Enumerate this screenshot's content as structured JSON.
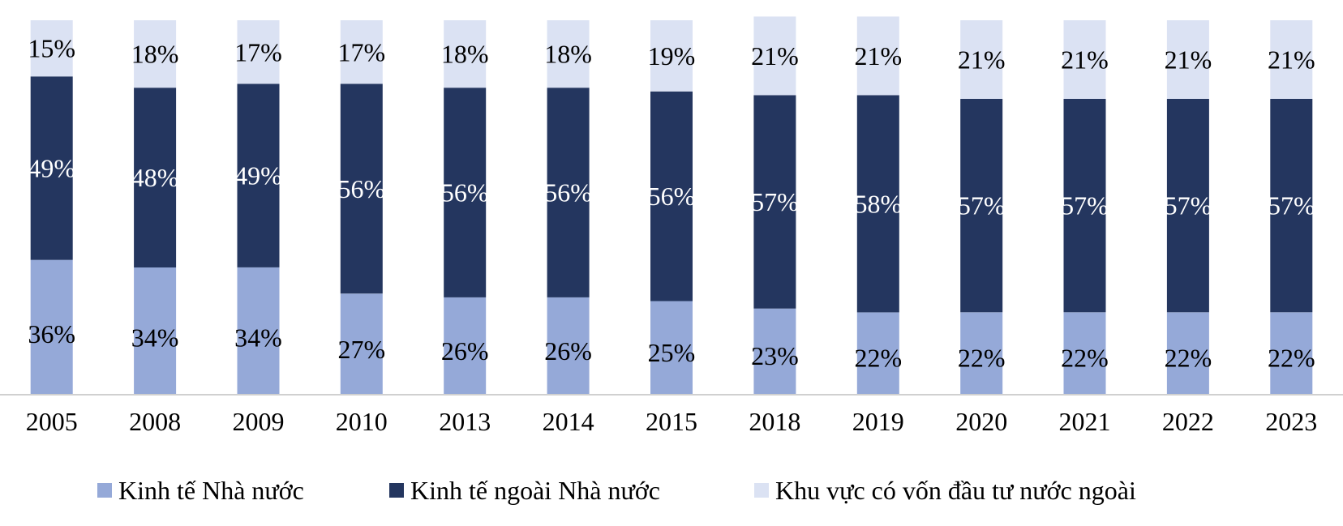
{
  "chart_data": {
    "type": "bar",
    "stacked": true,
    "normalized": true,
    "categories": [
      "2005",
      "2008",
      "2009",
      "2010",
      "2013",
      "2014",
      "2015",
      "2018",
      "2019",
      "2020",
      "2021",
      "2022",
      "2023"
    ],
    "series": [
      {
        "name": "Kinh tế Nhà nước",
        "color": "#95a9d8",
        "values": [
          36,
          34,
          34,
          27,
          26,
          26,
          25,
          23,
          22,
          22,
          22,
          22,
          22
        ],
        "labels": [
          "36%",
          "34%",
          "34%",
          "27%",
          "26%",
          "26%",
          "25%",
          "23%",
          "22%",
          "22%",
          "22%",
          "22%",
          "22%"
        ]
      },
      {
        "name": "Kinh tế ngoài Nhà nước",
        "color": "#24365f",
        "values": [
          49,
          48,
          49,
          56,
          56,
          56,
          56,
          57,
          58,
          57,
          57,
          57,
          57
        ],
        "labels": [
          "49%",
          "48%",
          "49%",
          "56%",
          "56%",
          "56%",
          "56%",
          "57%",
          "58%",
          "57%",
          "57%",
          "57%",
          "57%"
        ]
      },
      {
        "name": "Khu vực có vốn đầu tư nước ngoài",
        "color": "#dbe2f3",
        "values": [
          15,
          18,
          17,
          17,
          18,
          18,
          19,
          21,
          21,
          21,
          21,
          21,
          21
        ],
        "labels": [
          "15%",
          "18%",
          "17%",
          "17%",
          "18%",
          "18%",
          "19%",
          "21%",
          "21%",
          "21%",
          "21%",
          "21%",
          "21%"
        ]
      }
    ],
    "ylim": [
      0,
      100
    ],
    "grid": false,
    "legend": "bottom",
    "title": "",
    "xlabel": "",
    "ylabel": ""
  }
}
